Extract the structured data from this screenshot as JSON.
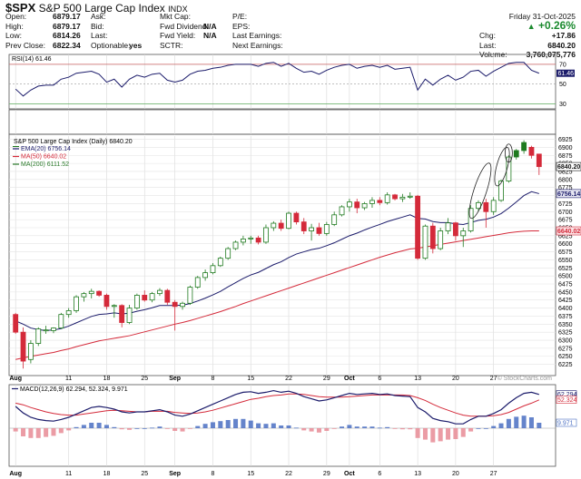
{
  "header": {
    "symbol": "$SPX",
    "name": "S&P 500 Large Cap Index",
    "exchange": "INDX",
    "date": "Friday  31-Oct-2025",
    "change_pct": "+0.26%",
    "quote_left": [
      {
        "label": "Open:",
        "value": "6879.17"
      },
      {
        "label": "High:",
        "value": "6879.17"
      },
      {
        "label": "Low:",
        "value": "6814.26"
      },
      {
        "label": "Prev Close:",
        "value": "6822.34"
      }
    ],
    "quote_mid": [
      {
        "label": "Ask:",
        "value": ""
      },
      {
        "label": "Bid:",
        "value": ""
      },
      {
        "label": "Last:",
        "value": ""
      },
      {
        "label": "Optionable:",
        "value": "yes"
      }
    ],
    "quote_mid2": [
      {
        "label": "Mkt Cap:",
        "value": ""
      },
      {
        "label": "Fwd Dividend:",
        "value": "N/A"
      },
      {
        "label": "Fwd Yield:",
        "value": "N/A"
      },
      {
        "label": "SCTR:",
        "value": ""
      }
    ],
    "quote_mid3": [
      {
        "label": "P/E:",
        "value": ""
      },
      {
        "label": "EPS:",
        "value": ""
      },
      {
        "label": "Last Earnings:",
        "value": ""
      },
      {
        "label": "Next Earnings:",
        "value": ""
      }
    ],
    "quote_right": [
      {
        "label": "Chg:",
        "value": "+17.86"
      },
      {
        "label": "Last:",
        "value": "6840.20"
      },
      {
        "label": "Volume:",
        "value": "3,760,075,776"
      }
    ],
    "watermark": "© StockCharts.com"
  },
  "chart_data": {
    "type": "candlestick",
    "x_labels": [
      {
        "i": 0,
        "t": "Aug"
      },
      {
        "i": 7,
        "t": "11"
      },
      {
        "i": 12,
        "t": "18"
      },
      {
        "i": 17,
        "t": "25"
      },
      {
        "i": 21,
        "t": "Sep"
      },
      {
        "i": 26,
        "t": "8"
      },
      {
        "i": 31,
        "t": "15"
      },
      {
        "i": 36,
        "t": "22"
      },
      {
        "i": 41,
        "t": "29"
      },
      {
        "i": 44,
        "t": "Oct"
      },
      {
        "i": 48,
        "t": "6"
      },
      {
        "i": 53,
        "t": "13"
      },
      {
        "i": 58,
        "t": "20"
      },
      {
        "i": 63,
        "t": "27"
      }
    ],
    "price_panel": {
      "title": "S&P 500 Large Cap Index (Daily) 6840.20",
      "ylim": [
        6190,
        6935
      ],
      "ticks": [
        6225,
        6250,
        6275,
        6300,
        6325,
        6350,
        6375,
        6400,
        6425,
        6450,
        6475,
        6500,
        6525,
        6550,
        6575,
        6600,
        6625,
        6650,
        6675,
        6700,
        6725,
        6750,
        6775,
        6800,
        6825,
        6850,
        6875,
        6900,
        6925
      ],
      "legend": [
        {
          "name": "EMA(20) 6756.14",
          "color": "#1c1c6b"
        },
        {
          "name": "MA(50) 6640.02",
          "color": "#d42a3a"
        },
        {
          "name": "MA(200) 6111.52",
          "color": "#2a7a2a"
        }
      ],
      "last_labels": [
        {
          "value": 6840.2,
          "text": "6840.20",
          "color": "#111111",
          "bg": "#ffffff"
        },
        {
          "value": 6756.14,
          "text": "6756.14",
          "color": "#1c1c6b",
          "bg": "#e6e6f2"
        },
        {
          "value": 6640.02,
          "text": "6640.02",
          "color": "#d42a3a",
          "bg": "#fbe2e4"
        }
      ],
      "candles": [
        [
          6380,
          6385,
          6320,
          6325
        ],
        [
          6325,
          6340,
          6212,
          6235
        ],
        [
          6240,
          6300,
          6228,
          6290
        ],
        [
          6290,
          6340,
          6282,
          6335
        ],
        [
          6330,
          6345,
          6320,
          6332
        ],
        [
          6330,
          6340,
          6322,
          6338
        ],
        [
          6338,
          6385,
          6335,
          6380
        ],
        [
          6380,
          6400,
          6370,
          6392
        ],
        [
          6392,
          6440,
          6385,
          6435
        ],
        [
          6435,
          6450,
          6420,
          6445
        ],
        [
          6445,
          6460,
          6430,
          6452
        ],
        [
          6452,
          6455,
          6435,
          6440
        ],
        [
          6440,
          6445,
          6395,
          6405
        ],
        [
          6405,
          6412,
          6370,
          6408
        ],
        [
          6408,
          6412,
          6340,
          6355
        ],
        [
          6355,
          6410,
          6350,
          6400
        ],
        [
          6400,
          6445,
          6395,
          6440
        ],
        [
          6440,
          6455,
          6420,
          6425
        ],
        [
          6425,
          6450,
          6418,
          6445
        ],
        [
          6445,
          6462,
          6438,
          6455
        ],
        [
          6455,
          6460,
          6410,
          6418
        ],
        [
          6418,
          6425,
          6330,
          6405
        ],
        [
          6405,
          6420,
          6395,
          6415
        ],
        [
          6415,
          6470,
          6410,
          6465
        ],
        [
          6465,
          6500,
          6460,
          6495
        ],
        [
          6495,
          6520,
          6485,
          6510
        ],
        [
          6510,
          6540,
          6505,
          6532
        ],
        [
          6532,
          6560,
          6528,
          6555
        ],
        [
          6555,
          6590,
          6550,
          6585
        ],
        [
          6585,
          6610,
          6580,
          6605
        ],
        [
          6605,
          6625,
          6595,
          6615
        ],
        [
          6615,
          6625,
          6600,
          6618
        ],
        [
          6618,
          6625,
          6598,
          6605
        ],
        [
          6605,
          6660,
          6600,
          6650
        ],
        [
          6650,
          6670,
          6640,
          6664
        ],
        [
          6664,
          6675,
          6640,
          6648
        ],
        [
          6648,
          6700,
          6645,
          6695
        ],
        [
          6695,
          6700,
          6660,
          6668
        ],
        [
          6668,
          6680,
          6630,
          6640
        ],
        [
          6640,
          6662,
          6610,
          6650
        ],
        [
          6650,
          6665,
          6625,
          6632
        ],
        [
          6632,
          6668,
          6625,
          6660
        ],
        [
          6660,
          6700,
          6655,
          6690
        ],
        [
          6690,
          6720,
          6685,
          6715
        ],
        [
          6715,
          6740,
          6700,
          6730
        ],
        [
          6730,
          6740,
          6695,
          6712
        ],
        [
          6712,
          6730,
          6705,
          6725
        ],
        [
          6725,
          6745,
          6712,
          6735
        ],
        [
          6735,
          6745,
          6720,
          6728
        ],
        [
          6728,
          6760,
          6722,
          6752
        ],
        [
          6752,
          6755,
          6735,
          6740
        ],
        [
          6740,
          6755,
          6730,
          6745
        ],
        [
          6745,
          6760,
          6740,
          6748
        ],
        [
          6748,
          6752,
          6550,
          6555
        ],
        [
          6555,
          6660,
          6550,
          6655
        ],
        [
          6655,
          6665,
          6570,
          6585
        ],
        [
          6585,
          6650,
          6580,
          6640
        ],
        [
          6640,
          6680,
          6630,
          6665
        ],
        [
          6665,
          6668,
          6610,
          6625
        ],
        [
          6625,
          6650,
          6590,
          6640
        ],
        [
          6640,
          6720,
          6635,
          6710
        ],
        [
          6710,
          6735,
          6700,
          6728
        ],
        [
          6728,
          6740,
          6650,
          6700
        ],
        [
          6700,
          6745,
          6690,
          6735
        ],
        [
          6735,
          6800,
          6730,
          6795
        ],
        [
          6795,
          6875,
          6790,
          6870
        ],
        [
          6870,
          6895,
          6862,
          6890
        ],
        [
          6890,
          6922,
          6880,
          6915
        ],
        [
          6900,
          6905,
          6865,
          6875
        ],
        [
          6879,
          6879,
          6814,
          6840
        ]
      ],
      "ema20": [
        6360,
        6350,
        6338,
        6333,
        6330,
        6332,
        6336,
        6344,
        6354,
        6364,
        6374,
        6380,
        6382,
        6385,
        6382,
        6384,
        6390,
        6395,
        6401,
        6408,
        6408,
        6408,
        6409,
        6414,
        6422,
        6431,
        6441,
        6452,
        6466,
        6479,
        6492,
        6503,
        6511,
        6523,
        6535,
        6544,
        6557,
        6568,
        6575,
        6582,
        6586,
        6594,
        6603,
        6614,
        6625,
        6633,
        6643,
        6652,
        6660,
        6669,
        6676,
        6683,
        6690,
        6679,
        6677,
        6669,
        6666,
        6666,
        6662,
        6660,
        6666,
        6673,
        6676,
        6683,
        6694,
        6711,
        6730,
        6750,
        6762,
        6756
      ],
      "ma50": [
        6240,
        6245,
        6250,
        6254,
        6258,
        6262,
        6268,
        6273,
        6280,
        6286,
        6292,
        6298,
        6302,
        6306,
        6310,
        6314,
        6320,
        6326,
        6332,
        6338,
        6344,
        6350,
        6355,
        6361,
        6368,
        6375,
        6382,
        6389,
        6397,
        6405,
        6414,
        6422,
        6430,
        6438,
        6446,
        6454,
        6462,
        6470,
        6478,
        6486,
        6494,
        6502,
        6510,
        6518,
        6526,
        6534,
        6542,
        6550,
        6558,
        6565,
        6572,
        6578,
        6584,
        6586,
        6590,
        6594,
        6598,
        6602,
        6606,
        6610,
        6614,
        6618,
        6622,
        6626,
        6630,
        6634,
        6637,
        6639,
        6640,
        6640
      ],
      "ma200_note": "below visible range"
    },
    "rsi_panel": {
      "title": "RSI(14) 61.46",
      "ylim": [
        25,
        80
      ],
      "ticks": [
        30,
        50,
        70
      ],
      "right_tag": "61.46",
      "values": [
        45,
        38,
        44,
        48,
        49,
        49,
        55,
        57,
        61,
        62,
        63,
        60,
        52,
        55,
        47,
        55,
        59,
        57,
        60,
        61,
        54,
        52,
        54,
        60,
        63,
        64,
        66,
        67,
        69,
        70,
        70,
        70,
        68,
        71,
        72,
        68,
        71,
        66,
        62,
        63,
        60,
        64,
        67,
        69,
        70,
        66,
        68,
        69,
        67,
        69,
        65,
        66,
        67,
        44,
        55,
        49,
        55,
        59,
        54,
        57,
        63,
        64,
        58,
        63,
        67,
        71,
        72,
        72,
        64,
        61
      ]
    },
    "macd_panel": {
      "title": "MACD(12,26,9) 62.294, 52.324, 9.971",
      "ylim": [
        -70,
        80
      ],
      "tags": [
        {
          "value": 62.294,
          "text": "62.294",
          "color": "#1c1c6b"
        },
        {
          "value": 52.324,
          "text": "52.324",
          "color": "#d42a3a"
        },
        {
          "value": 9.971,
          "text": "9.971",
          "color": "#4a6fc2"
        }
      ],
      "macd": [
        40,
        28,
        20,
        16,
        14,
        13,
        16,
        20,
        26,
        32,
        38,
        40,
        38,
        35,
        30,
        28,
        30,
        30,
        32,
        34,
        30,
        24,
        22,
        26,
        32,
        38,
        44,
        50,
        56,
        62,
        66,
        67,
        64,
        66,
        69,
        66,
        68,
        64,
        58,
        54,
        50,
        52,
        56,
        60,
        64,
        62,
        63,
        64,
        62,
        63,
        60,
        59,
        58,
        38,
        30,
        18,
        14,
        12,
        8,
        8,
        16,
        22,
        22,
        27,
        34,
        46,
        56,
        64,
        66,
        62
      ],
      "signal": [
        46,
        43,
        38,
        34,
        30,
        27,
        25,
        24,
        24,
        26,
        28,
        30,
        32,
        33,
        32,
        31,
        30,
        30,
        31,
        31,
        31,
        29,
        28,
        27,
        28,
        30,
        33,
        37,
        41,
        45,
        49,
        53,
        55,
        58,
        60,
        61,
        63,
        63,
        62,
        60,
        58,
        57,
        57,
        57,
        58,
        59,
        60,
        61,
        61,
        61,
        61,
        61,
        60,
        56,
        51,
        44,
        38,
        33,
        28,
        24,
        22,
        22,
        22,
        23,
        25,
        29,
        35,
        41,
        46,
        52
      ]
    }
  }
}
